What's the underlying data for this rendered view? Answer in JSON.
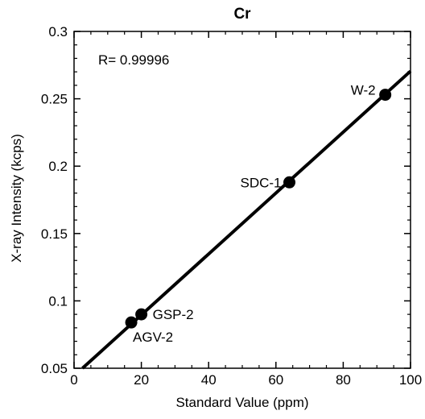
{
  "chart_data": {
    "type": "scatter",
    "title": "Cr",
    "xlabel": "Standard Value (ppm)",
    "ylabel": "X-ray Intensity (kcps)",
    "xlim": [
      0,
      100
    ],
    "ylim": [
      0.05,
      0.3
    ],
    "xticks": [
      0,
      20,
      40,
      60,
      80,
      100
    ],
    "xtick_labels": [
      "0",
      "20",
      "40",
      "60",
      "80",
      "100"
    ],
    "yticks": [
      0.05,
      0.1,
      0.15,
      0.2,
      0.25,
      0.3
    ],
    "ytick_labels": [
      "0.05",
      "0.1",
      "0.15",
      "0.2",
      "0.25",
      "0.3"
    ],
    "grid": false,
    "annotation": "R= 0.99996",
    "points": [
      {
        "name": "AGV-2",
        "x": 17,
        "y": 0.084
      },
      {
        "name": "GSP-2",
        "x": 20,
        "y": 0.09
      },
      {
        "name": "SDC-1",
        "x": 64,
        "y": 0.188
      },
      {
        "name": "W-2",
        "x": 92.5,
        "y": 0.253
      }
    ],
    "fit_line": {
      "x": [
        2.5,
        100
      ],
      "y": [
        0.05,
        0.2705
      ]
    }
  }
}
